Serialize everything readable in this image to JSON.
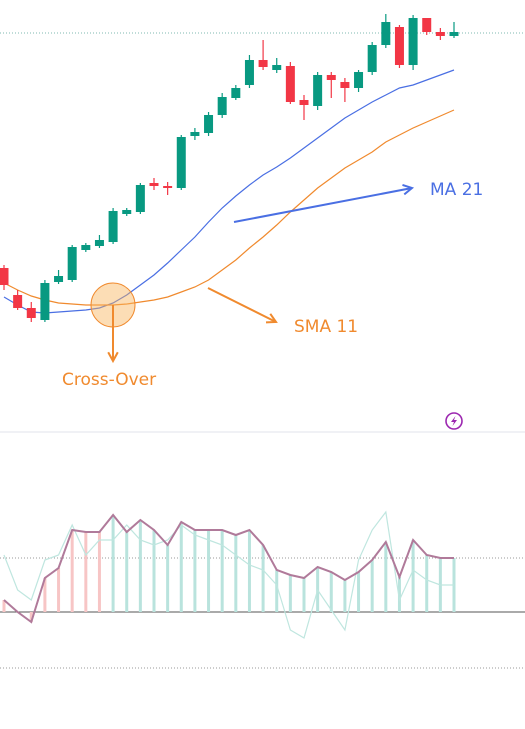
{
  "chart_data": [
    {
      "type": "candlestick",
      "up_color": "#089981",
      "down_color": "#f23645",
      "open": [
        152,
        125,
        112,
        100,
        138,
        140,
        170,
        174,
        178,
        206,
        208,
        237,
        234,
        232,
        284,
        287,
        305,
        322,
        335,
        360,
        350,
        354,
        320,
        314,
        345,
        338,
        332,
        348,
        375,
        393,
        355,
        402,
        388,
        384
      ],
      "high": [
        155,
        130,
        118,
        140,
        150,
        175,
        177,
        185,
        212,
        212,
        237,
        242,
        238,
        285,
        292,
        308,
        327,
        335,
        365,
        380,
        362,
        358,
        325,
        348,
        348,
        342,
        350,
        378,
        406,
        395,
        405,
        402,
        392,
        398
      ],
      "low": [
        130,
        110,
        98,
        98,
        136,
        138,
        168,
        172,
        176,
        204,
        206,
        230,
        225,
        230,
        280,
        284,
        302,
        320,
        332,
        350,
        347,
        316,
        300,
        310,
        322,
        318,
        328,
        345,
        372,
        352,
        350,
        385,
        380,
        382
      ],
      "close": [
        135,
        112,
        102,
        137,
        144,
        173,
        175,
        180,
        209,
        210,
        235,
        234,
        232,
        283,
        288,
        305,
        323,
        332,
        360,
        353,
        355,
        318,
        315,
        345,
        340,
        332,
        348,
        375,
        398,
        355,
        402,
        388,
        384,
        388
      ],
      "series": [
        {
          "name": "MA 21",
          "color": "#4a6fe3",
          "values": [
            123,
            115,
            108,
            107,
            108,
            109,
            110,
            112,
            117,
            125,
            135,
            145,
            157,
            170,
            183,
            198,
            212,
            224,
            235,
            245,
            253,
            262,
            272,
            282,
            292,
            302,
            310,
            318,
            325,
            332,
            335,
            340,
            345,
            350
          ]
        },
        {
          "name": "SMA 11",
          "color": "#f08a2e",
          "values": [
            137,
            130,
            124,
            120,
            117,
            116,
            115,
            115,
            115,
            116,
            118,
            120,
            123,
            128,
            133,
            140,
            150,
            160,
            172,
            183,
            195,
            208,
            220,
            232,
            242,
            252,
            260,
            268,
            278,
            285,
            292,
            298,
            304,
            310
          ]
        }
      ],
      "annotation": "Cross-Over",
      "ylim": [
        0,
        420
      ],
      "yticks": [
        387
      ],
      "grid": true
    },
    {
      "type": "bar",
      "values": [
        12,
        0,
        -10,
        34,
        44,
        82,
        80,
        80,
        97,
        80,
        92,
        82,
        67,
        90,
        82,
        82,
        82,
        77,
        82,
        67,
        42,
        37,
        34,
        45,
        40,
        32,
        40,
        52,
        70,
        35,
        72,
        57,
        54,
        54
      ],
      "colors": [
        "#f7c5c5",
        "#f7c5c5",
        "#f7c5c5",
        "#f7c5c5",
        "#f7c5c5",
        "#f7c5c5",
        "#f7c5c5",
        "#f7c5c5",
        "#b9e3dd",
        "#b9e3dd",
        "#b9e3dd",
        "#b9e3dd",
        "#b9e3dd",
        "#b9e3dd",
        "#b9e3dd",
        "#b9e3dd",
        "#b9e3dd",
        "#b9e3dd",
        "#b9e3dd",
        "#b9e3dd",
        "#b9e3dd",
        "#b9e3dd",
        "#b9e3dd",
        "#b9e3dd",
        "#b9e3dd",
        "#b9e3dd",
        "#b9e3dd",
        "#b9e3dd",
        "#b9e3dd",
        "#b9e3dd",
        "#b9e3dd",
        "#b9e3dd",
        "#b9e3dd",
        "#b9e3dd"
      ],
      "line_color": "#b07a9a",
      "signal_color": "#bfe6df",
      "signal": [
        57,
        22,
        12,
        52,
        57,
        87,
        57,
        72,
        72,
        87,
        72,
        67,
        72,
        87,
        77,
        72,
        67,
        57,
        47,
        42,
        27,
        -18,
        -26,
        22,
        2,
        -18,
        52,
        82,
        100,
        12,
        42,
        32,
        27,
        27
      ],
      "ylim": [
        -117,
        180
      ],
      "yticks": [
        -56,
        0,
        54
      ],
      "grid": true
    }
  ]
}
